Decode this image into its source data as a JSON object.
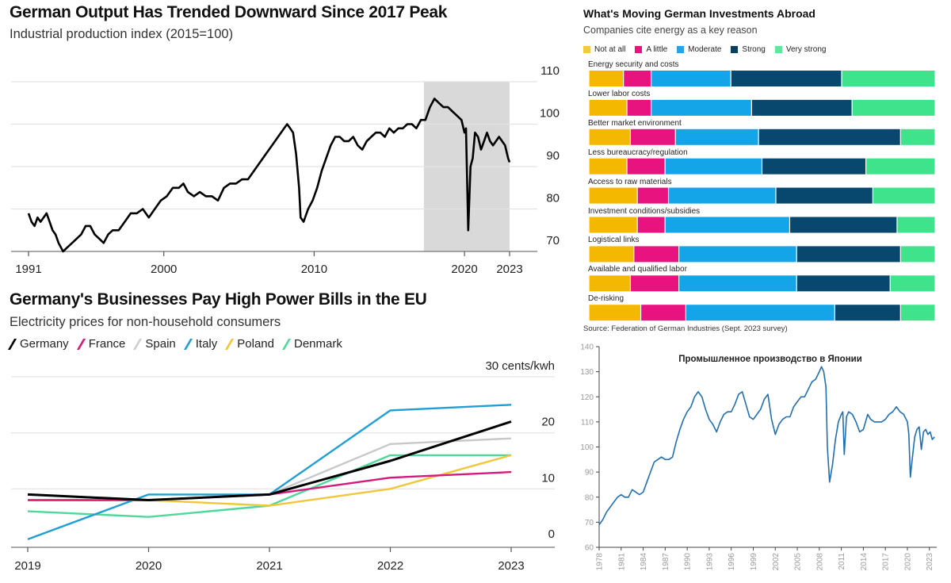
{
  "chart_data": [
    {
      "id": "german_output",
      "type": "line",
      "title": "German Output Has Trended Downward Since 2017 Peak",
      "subtitle": "Industrial production index (2015=100)",
      "xlabel": "",
      "ylabel": "",
      "x_ticks": [
        "1991",
        "2000",
        "2010",
        "2020",
        "2023"
      ],
      "y_ticks": [
        "110",
        "100",
        "90",
        "80",
        "70"
      ],
      "xlim": [
        1991,
        2023
      ],
      "ylim": [
        70,
        110
      ],
      "grid": true,
      "shaded_region": {
        "from": 2017.3,
        "to": 2023,
        "color": "#d9d9d9"
      },
      "series": [
        {
          "name": "Industrial production index",
          "color": "#000000",
          "x": [
            1991.0,
            1991.2,
            1991.4,
            1991.6,
            1991.8,
            1992.0,
            1992.2,
            1992.4,
            1992.6,
            1992.8,
            1993.0,
            1993.3,
            1993.6,
            1993.9,
            1994.2,
            1994.5,
            1994.8,
            1995.1,
            1995.4,
            1995.7,
            1996.0,
            1996.3,
            1996.6,
            1997.0,
            1997.4,
            1997.8,
            1998.2,
            1998.6,
            1999.0,
            1999.4,
            1999.8,
            2000.2,
            2000.6,
            2001.0,
            2001.3,
            2001.6,
            2002.0,
            2002.4,
            2002.8,
            2003.2,
            2003.6,
            2004.0,
            2004.4,
            2004.8,
            2005.2,
            2005.6,
            2006.0,
            2006.4,
            2006.8,
            2007.2,
            2007.6,
            2008.0,
            2008.2,
            2008.4,
            2008.6,
            2008.8,
            2009.0,
            2009.1,
            2009.3,
            2009.6,
            2009.9,
            2010.2,
            2010.5,
            2010.8,
            2011.1,
            2011.4,
            2011.7,
            2012.0,
            2012.3,
            2012.6,
            2012.9,
            2013.2,
            2013.5,
            2013.8,
            2014.1,
            2014.4,
            2014.7,
            2015.0,
            2015.3,
            2015.6,
            2015.9,
            2016.2,
            2016.5,
            2016.8,
            2017.1,
            2017.4,
            2017.7,
            2018.0,
            2018.3,
            2018.6,
            2018.9,
            2019.2,
            2019.5,
            2019.8,
            2020.0,
            2020.1,
            2020.25,
            2020.4,
            2020.55,
            2020.7,
            2020.9,
            2021.1,
            2021.3,
            2021.5,
            2021.7,
            2021.9,
            2022.1,
            2022.3,
            2022.5,
            2022.7,
            2022.9,
            2023.0
          ],
          "y": [
            79,
            77,
            76,
            78,
            77,
            78,
            79,
            77,
            75,
            74,
            72,
            70,
            71,
            72,
            73,
            74,
            76,
            76,
            74,
            73,
            72,
            74,
            75,
            75,
            77,
            79,
            79,
            80,
            78,
            80,
            82,
            83,
            85,
            85,
            86,
            84,
            83,
            84,
            83,
            83,
            82,
            85,
            86,
            86,
            87,
            87,
            89,
            91,
            93,
            95,
            97,
            99,
            100,
            99,
            98,
            93,
            85,
            78,
            77,
            80,
            82,
            85,
            89,
            92,
            95,
            97,
            97,
            96,
            96,
            97,
            95,
            94,
            96,
            97,
            98,
            98,
            97,
            99,
            98,
            99,
            99,
            100,
            100,
            99,
            101,
            101,
            104,
            106,
            105,
            104,
            104,
            103,
            102,
            101,
            98,
            99,
            75,
            90,
            92,
            98,
            97,
            94,
            96,
            98,
            96,
            95,
            96,
            97,
            96,
            95,
            92,
            91
          ]
        }
      ]
    },
    {
      "id": "investment_reasons",
      "type": "bar",
      "orientation": "horizontal-stacked",
      "title": "What's Moving German Investments Abroad",
      "subtitle": "Companies cite energy as a key reason",
      "source": "Source: Federation of German Industries (Sept. 2023 survey)",
      "units": "percent of respondents",
      "categories": [
        "Energy security and costs",
        "Lower labor costs",
        "Better market environment",
        "Less bureaucracy/regulation",
        "Access to raw materials",
        "Investment conditions/subsidies",
        "Logistical links",
        "Available and qualified labor",
        "De-risking"
      ],
      "series": [
        {
          "name": "Not at all",
          "color": "#f5b800",
          "values": [
            10,
            11,
            12,
            11,
            14,
            14,
            13,
            12,
            15
          ]
        },
        {
          "name": "A little",
          "color": "#e8137e",
          "values": [
            8,
            7,
            13,
            11,
            9,
            8,
            13,
            14,
            13
          ]
        },
        {
          "name": "Moderate",
          "color": "#13a5e8",
          "values": [
            23,
            29,
            24,
            28,
            31,
            36,
            34,
            34,
            43
          ]
        },
        {
          "name": "Strong",
          "color": "#08476e",
          "values": [
            32,
            29,
            41,
            30,
            28,
            31,
            30,
            27,
            19
          ]
        },
        {
          "name": "Very strong",
          "color": "#3ee38c",
          "values": [
            27,
            24,
            10,
            20,
            18,
            11,
            10,
            13,
            10
          ]
        }
      ],
      "xlim": [
        0,
        100
      ],
      "legend": "top"
    },
    {
      "id": "power_bills",
      "type": "line",
      "title": "Germany's Businesses Pay High Power Bills in the EU",
      "subtitle": "Electricity prices for non-household consumers",
      "ylabel": "30 cents/kwh",
      "x": [
        "2019",
        "2020",
        "2021",
        "2022",
        "2023"
      ],
      "y_ticks": [
        "30 cents/kwh",
        "20",
        "10",
        "0"
      ],
      "ylim": [
        0,
        30
      ],
      "grid": true,
      "legend": "top-left",
      "series": [
        {
          "name": "Germany",
          "color": "#000000",
          "values": [
            9.0,
            8.0,
            9.0,
            15.0,
            22.0
          ]
        },
        {
          "name": "France",
          "color": "#d6197a",
          "values": [
            8.0,
            8.0,
            9.0,
            12.0,
            13.0
          ]
        },
        {
          "name": "Spain",
          "color": "#c8c8c8",
          "values": [
            8.0,
            8.0,
            9.0,
            18.0,
            19.0
          ]
        },
        {
          "name": "Italy",
          "color": "#1f9fd3",
          "values": [
            1.0,
            9.0,
            9.0,
            24.0,
            25.0
          ]
        },
        {
          "name": "Poland",
          "color": "#f2c63a",
          "values": [
            8.0,
            8.0,
            7.0,
            10.0,
            16.0
          ]
        },
        {
          "name": "Denmark",
          "color": "#4fd89b",
          "values": [
            6.0,
            5.0,
            7.0,
            16.0,
            16.0
          ]
        }
      ]
    },
    {
      "id": "japan_output",
      "type": "line",
      "title": "Промышленное производство в Японии",
      "xlabel": "",
      "ylabel": "",
      "x_ticks": [
        "1978",
        "1981",
        "1984",
        "1987",
        "1990",
        "1993",
        "1996",
        "1999",
        "2002",
        "2005",
        "2008",
        "2011",
        "2014",
        "2017",
        "2020",
        "2023"
      ],
      "y_ticks": [
        "140",
        "130",
        "120",
        "110",
        "100",
        "90",
        "80",
        "70",
        "60"
      ],
      "xlim": [
        1978,
        2024
      ],
      "ylim": [
        60,
        140
      ],
      "grid": false,
      "series": [
        {
          "name": "Industrial production Japan",
          "color": "#1f6fb2",
          "x": [
            1978.0,
            1978.5,
            1979.0,
            1979.5,
            1980.0,
            1980.5,
            1981.0,
            1981.5,
            1982.0,
            1982.5,
            1983.0,
            1983.5,
            1984.0,
            1984.5,
            1985.0,
            1985.5,
            1986.0,
            1986.5,
            1987.0,
            1987.5,
            1988.0,
            1988.5,
            1989.0,
            1989.5,
            1990.0,
            1990.5,
            1991.0,
            1991.5,
            1992.0,
            1992.5,
            1993.0,
            1993.5,
            1994.0,
            1994.5,
            1995.0,
            1995.5,
            1996.0,
            1996.5,
            1997.0,
            1997.5,
            1998.0,
            1998.5,
            1999.0,
            1999.5,
            2000.0,
            2000.5,
            2001.0,
            2001.5,
            2002.0,
            2002.5,
            2003.0,
            2003.5,
            2004.0,
            2004.5,
            2005.0,
            2005.5,
            2006.0,
            2006.5,
            2007.0,
            2007.5,
            2008.0,
            2008.3,
            2008.6,
            2008.9,
            2009.1,
            2009.4,
            2009.8,
            2010.2,
            2010.6,
            2011.0,
            2011.2,
            2011.4,
            2011.7,
            2012.0,
            2012.5,
            2013.0,
            2013.5,
            2014.0,
            2014.3,
            2014.6,
            2015.0,
            2015.5,
            2016.0,
            2016.5,
            2017.0,
            2017.5,
            2018.0,
            2018.5,
            2019.0,
            2019.5,
            2020.0,
            2020.2,
            2020.4,
            2020.7,
            2021.0,
            2021.3,
            2021.6,
            2021.9,
            2022.2,
            2022.5,
            2022.8,
            2023.1,
            2023.4,
            2023.7
          ],
          "y": [
            69,
            71,
            74,
            76,
            78,
            80,
            81,
            80,
            80,
            83,
            82,
            81,
            82,
            86,
            90,
            94,
            95,
            96,
            95,
            95,
            96,
            102,
            107,
            111,
            114,
            116,
            120,
            122,
            120,
            115,
            111,
            109,
            106,
            110,
            113,
            114,
            114,
            117,
            121,
            122,
            117,
            112,
            111,
            113,
            115,
            119,
            121,
            111,
            105,
            109,
            111,
            112,
            112,
            116,
            118,
            120,
            120,
            123,
            126,
            127,
            130,
            132,
            130,
            124,
            100,
            86,
            93,
            103,
            110,
            113,
            114,
            97,
            112,
            114,
            113,
            110,
            106,
            107,
            110,
            113,
            111,
            110,
            110,
            110,
            111,
            113,
            114,
            116,
            114,
            113,
            110,
            105,
            88,
            96,
            104,
            107,
            108,
            99,
            106,
            107,
            105,
            106,
            103,
            104
          ]
        }
      ]
    }
  ],
  "panels": {
    "german_output": {
      "title": "German Output Has Trended Downward Since 2017 Peak",
      "subtitle": "Industrial production index (2015=100)"
    },
    "investment_reasons": {
      "title": "What's Moving German Investments Abroad",
      "subtitle": "Companies cite energy as a key reason",
      "legend": [
        "Not at all",
        "A little",
        "Moderate",
        "Strong",
        "Very strong"
      ],
      "source": "Source: Federation of German Industries (Sept. 2023 survey)"
    },
    "power_bills": {
      "title": "Germany's Businesses Pay High Power Bills in the EU",
      "subtitle": "Electricity prices for non-household consumers",
      "legend": [
        "Germany",
        "France",
        "Spain",
        "Italy",
        "Poland",
        "Denmark"
      ],
      "unit_label": "30 cents/kwh"
    },
    "japan_output": {
      "title": "Промышленное производство в Японии"
    }
  }
}
